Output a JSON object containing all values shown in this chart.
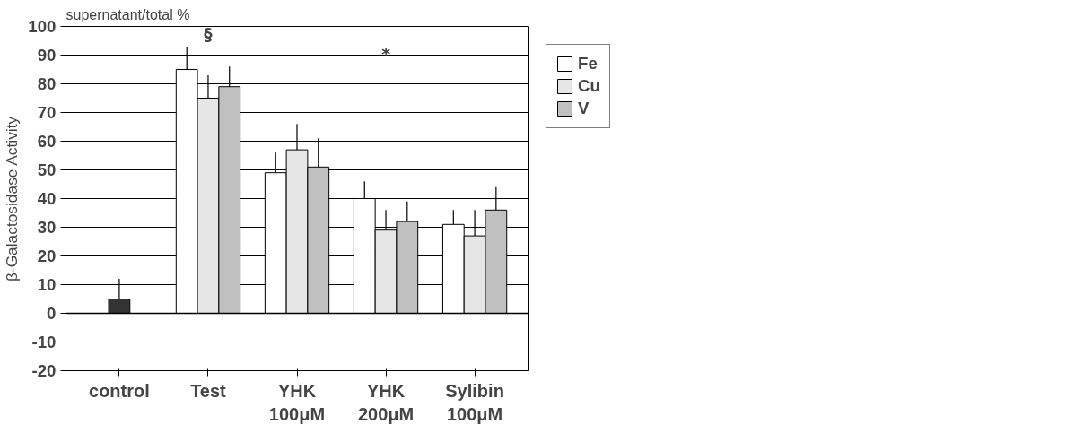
{
  "chart_data": {
    "type": "bar",
    "subtitle": "supernatant/total %",
    "ylabel": "β-Galactosidase Activity",
    "categories": [
      "control",
      "Test",
      "YHK\n100μM",
      "YHK\n200μM",
      "Sylibin\n100μM"
    ],
    "series": [
      {
        "color": "#333333",
        "values": [
          5,
          null,
          null,
          null,
          null
        ],
        "errors": [
          [
            5,
            12
          ],
          null,
          null,
          null,
          null
        ]
      },
      {
        "name": "Fe",
        "color": "#ffffff",
        "values": [
          null,
          85,
          49,
          40,
          31
        ],
        "errors": [
          null,
          [
            85,
            93
          ],
          [
            49,
            56
          ],
          [
            40,
            46
          ],
          [
            31,
            36
          ]
        ]
      },
      {
        "name": "Cu",
        "color": "#e6e6e6",
        "values": [
          null,
          75,
          57,
          29,
          27
        ],
        "errors": [
          null,
          [
            75,
            83
          ],
          [
            57,
            66
          ],
          [
            29,
            36
          ],
          [
            27,
            36
          ]
        ]
      },
      {
        "name": "V",
        "color": "#c0c0c0",
        "values": [
          null,
          79,
          51,
          32,
          36
        ],
        "errors": [
          null,
          [
            79,
            86
          ],
          [
            51,
            61
          ],
          [
            32,
            39
          ],
          [
            36,
            44
          ]
        ]
      }
    ],
    "ylim": [
      -20,
      100
    ],
    "yticks": [
      -20,
      -10,
      0,
      10,
      20,
      30,
      40,
      50,
      60,
      70,
      80,
      90,
      100
    ],
    "grid": "y",
    "legend": "right",
    "annotations": [
      "§",
      "*"
    ]
  }
}
